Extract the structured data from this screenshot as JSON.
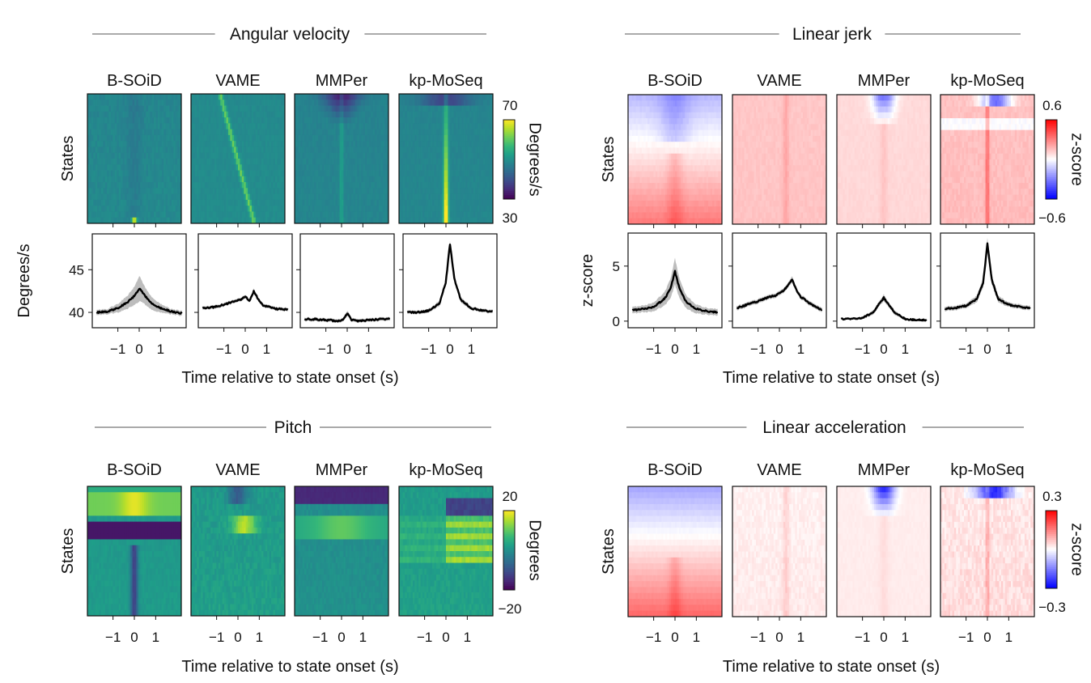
{
  "figure": {
    "methods": [
      "B-SOiD",
      "VAME",
      "MMPer",
      "kp-MoSeq"
    ],
    "x_axis_label": "Time relative to state onset (s)",
    "x_ticks": [
      -1,
      0,
      1
    ],
    "x_tick_labels": [
      "−1",
      "0",
      "1"
    ],
    "heatmap_y_label": "States"
  },
  "chart_data": [
    {
      "id": "angular-velocity",
      "title": "Angular velocity",
      "type": "heatmap",
      "colormap": "viridis",
      "colorbar": {
        "min": 30,
        "max": 70,
        "min_label": "30",
        "max_label": "70",
        "label": "Degrees/s"
      },
      "states_per_panel": [
        22,
        22,
        22,
        22
      ],
      "line_plot": {
        "type": "line",
        "ylabel": "Degrees/s",
        "ylim": [
          38.2,
          49.2
        ],
        "yticks": [
          40,
          45
        ],
        "ytick_labels": [
          "40",
          "45"
        ],
        "xlim": [
          -2.2,
          2.2
        ],
        "series": [
          {
            "method": "B-SOiD",
            "x": [
              -2.0,
              -1.5,
              -1.0,
              -0.5,
              -0.2,
              0.0,
              0.2,
              0.5,
              1.0,
              1.5,
              2.0
            ],
            "values": [
              40.0,
              40.1,
              40.5,
              41.3,
              42.0,
              42.8,
              42.2,
              41.2,
              40.5,
              40.1,
              39.9
            ],
            "band": [
              0.3,
              0.3,
              0.5,
              0.8,
              1.1,
              1.5,
              1.1,
              0.8,
              0.5,
              0.3,
              0.3
            ]
          },
          {
            "method": "VAME",
            "x": [
              -2.0,
              -1.5,
              -1.0,
              -0.5,
              -0.2,
              0.0,
              0.2,
              0.4,
              0.6,
              0.8,
              1.0,
              1.5,
              2.0
            ],
            "values": [
              40.5,
              40.6,
              40.9,
              41.3,
              41.5,
              41.9,
              41.3,
              42.5,
              41.6,
              40.9,
              40.7,
              40.4,
              40.3
            ],
            "band": [
              0.2,
              0.2,
              0.2,
              0.2,
              0.2,
              0.2,
              0.2,
              0.3,
              0.2,
              0.2,
              0.2,
              0.2,
              0.2
            ]
          },
          {
            "method": "MMPer",
            "x": [
              -2.0,
              -1.5,
              -1.0,
              -0.5,
              -0.2,
              0.0,
              0.2,
              0.5,
              1.0,
              1.5,
              2.0
            ],
            "values": [
              39.2,
              39.2,
              39.1,
              39.0,
              39.1,
              39.9,
              39.1,
              39.0,
              39.1,
              39.2,
              39.2
            ],
            "band": [
              0.2,
              0.2,
              0.2,
              0.2,
              0.2,
              0.3,
              0.2,
              0.2,
              0.2,
              0.2,
              0.2
            ]
          },
          {
            "method": "kp-MoSeq",
            "x": [
              -2.0,
              -1.5,
              -1.0,
              -0.5,
              -0.2,
              0.0,
              0.2,
              0.5,
              1.0,
              1.5,
              2.0
            ],
            "values": [
              40.0,
              40.0,
              40.2,
              41.0,
              43.5,
              48.0,
              44.0,
              41.5,
              40.5,
              40.2,
              40.1
            ],
            "band": [
              0.2,
              0.2,
              0.2,
              0.3,
              0.3,
              0.4,
              0.3,
              0.3,
              0.2,
              0.2,
              0.2
            ]
          }
        ]
      }
    },
    {
      "id": "linear-jerk",
      "title": "Linear jerk",
      "type": "heatmap",
      "colormap": "bwr",
      "colorbar": {
        "min": -0.6,
        "max": 0.6,
        "min_label": "−0.6",
        "max_label": "0.6",
        "label": "z-score"
      },
      "states_per_panel": [
        22,
        22,
        22,
        22
      ],
      "line_plot": {
        "type": "line",
        "ylabel": "z-score",
        "ylim": [
          -0.6,
          8.0
        ],
        "yticks": [
          0,
          5
        ],
        "ytick_labels": [
          "0",
          "5"
        ],
        "xlim": [
          -2.2,
          2.2
        ],
        "series": [
          {
            "method": "B-SOiD",
            "x": [
              -2.0,
              -1.5,
              -1.0,
              -0.5,
              -0.2,
              0.0,
              0.2,
              0.5,
              1.0,
              1.5,
              2.0
            ],
            "values": [
              1.0,
              1.1,
              1.3,
              2.0,
              3.0,
              4.5,
              3.0,
              1.8,
              1.1,
              0.9,
              0.8
            ],
            "band": [
              0.3,
              0.3,
              0.4,
              0.6,
              0.9,
              1.2,
              0.9,
              0.6,
              0.4,
              0.3,
              0.3
            ]
          },
          {
            "method": "VAME",
            "x": [
              -2.0,
              -1.5,
              -1.0,
              -0.5,
              -0.2,
              0.0,
              0.2,
              0.4,
              0.6,
              0.8,
              1.0,
              1.5,
              2.0
            ],
            "values": [
              1.2,
              1.5,
              1.8,
              2.2,
              2.3,
              2.5,
              2.8,
              3.2,
              3.8,
              2.8,
              2.2,
              1.5,
              1.0
            ],
            "band": [
              0.2,
              0.2,
              0.2,
              0.2,
              0.2,
              0.2,
              0.2,
              0.2,
              0.3,
              0.2,
              0.2,
              0.2,
              0.2
            ]
          },
          {
            "method": "MMPer",
            "x": [
              -2.0,
              -1.5,
              -1.0,
              -0.5,
              -0.2,
              0.0,
              0.2,
              0.5,
              1.0,
              1.5,
              2.0
            ],
            "values": [
              0.2,
              0.2,
              0.3,
              0.8,
              1.6,
              2.1,
              1.6,
              0.8,
              0.2,
              0.1,
              0.1
            ],
            "band": [
              0.1,
              0.1,
              0.1,
              0.2,
              0.2,
              0.3,
              0.2,
              0.2,
              0.1,
              0.1,
              0.1
            ]
          },
          {
            "method": "kp-MoSeq",
            "x": [
              -2.0,
              -1.5,
              -1.0,
              -0.5,
              -0.2,
              0.0,
              0.2,
              0.5,
              1.0,
              1.5,
              2.0
            ],
            "values": [
              1.1,
              1.2,
              1.4,
              2.0,
              3.5,
              7.0,
              3.8,
              2.0,
              1.5,
              1.3,
              1.2
            ],
            "band": [
              0.2,
              0.2,
              0.2,
              0.3,
              0.4,
              0.5,
              0.4,
              0.3,
              0.2,
              0.2,
              0.2
            ]
          }
        ]
      }
    },
    {
      "id": "pitch",
      "title": "Pitch",
      "type": "heatmap",
      "colormap": "viridis",
      "colorbar": {
        "min": -20,
        "max": 20,
        "min_label": "−20",
        "max_label": "20",
        "label": "Degrees"
      },
      "states_per_panel": [
        22,
        22,
        22,
        22
      ]
    },
    {
      "id": "linear-acceleration",
      "title": "Linear acceleration",
      "type": "heatmap",
      "colormap": "bwr",
      "colorbar": {
        "min": -0.3,
        "max": 0.3,
        "min_label": "−0.3",
        "max_label": "0.3",
        "label": "z-score"
      },
      "states_per_panel": [
        22,
        22,
        22,
        22
      ]
    }
  ]
}
